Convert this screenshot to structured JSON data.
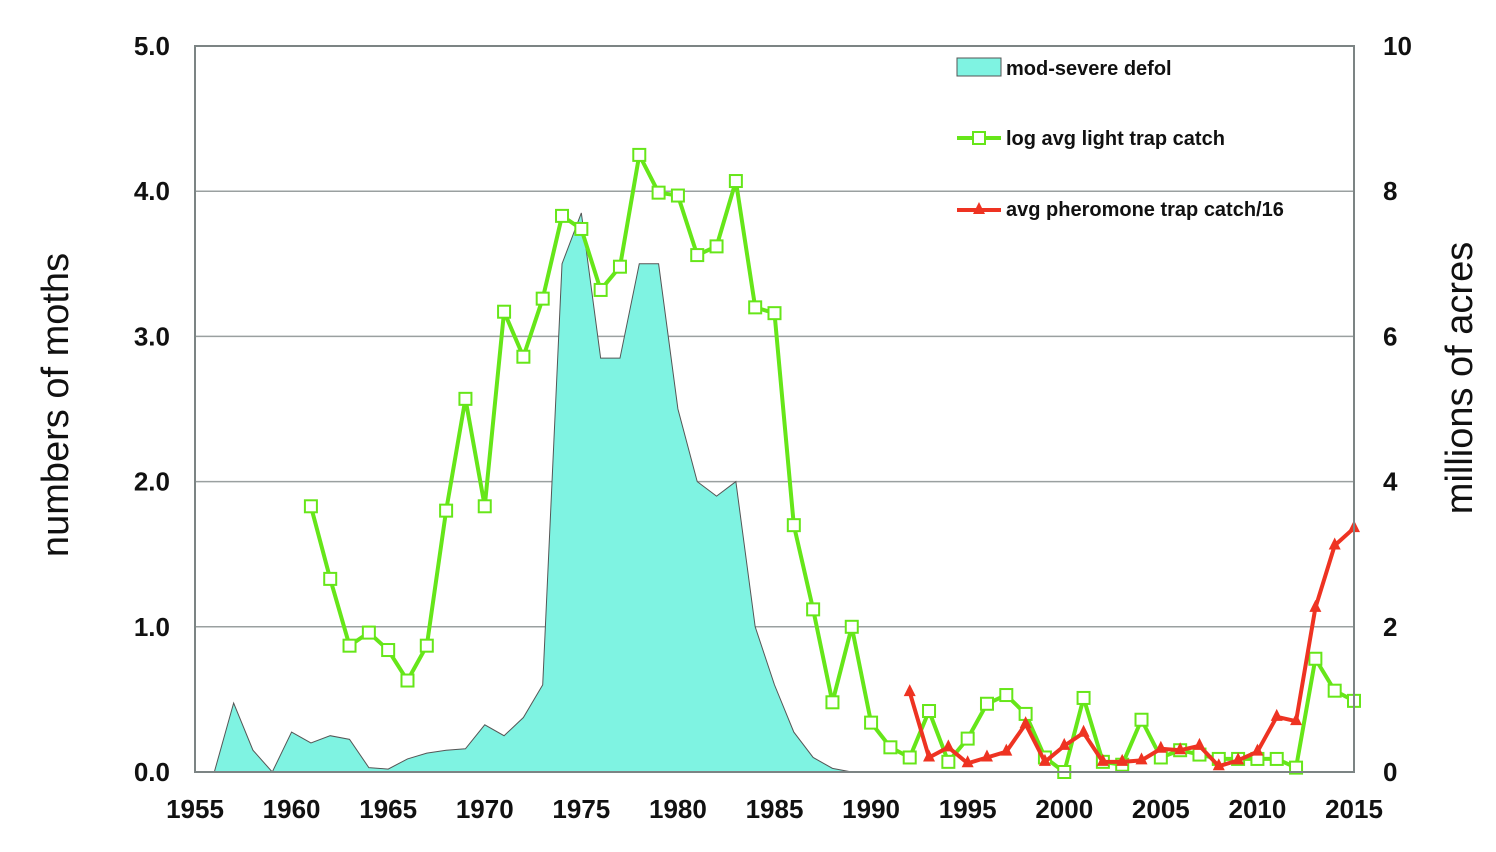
{
  "chart_data": {
    "type": "line",
    "title": "",
    "xlabel": "",
    "ylabel": "numbers of moths",
    "y2label": "millions of acres",
    "xlim": [
      1955,
      2015
    ],
    "ylim": [
      0,
      5
    ],
    "y2lim": [
      0,
      10
    ],
    "x_ticks": [
      "1955",
      "1960",
      "1965",
      "1970",
      "1975",
      "1980",
      "1985",
      "1990",
      "1995",
      "2000",
      "2005",
      "2010",
      "2015"
    ],
    "y_ticks": [
      "0.0",
      "1.0",
      "2.0",
      "3.0",
      "4.0",
      "5.0"
    ],
    "y2_ticks": [
      "0",
      "2",
      "4",
      "6",
      "8",
      "10"
    ],
    "grid": true,
    "legend_position": "top-right",
    "colors": {
      "area_fill": "#7ff3e2",
      "area_edge": "#555555",
      "light_trap": "#66e619",
      "pheromone": "#ee3322",
      "grid": "#9aa0a0",
      "frame": "#7c8484"
    },
    "series": [
      {
        "name": "mod-severe defol",
        "kind": "area",
        "axis": "right",
        "x": [
          1955,
          1956,
          1957,
          1958,
          1959,
          1960,
          1961,
          1962,
          1963,
          1964,
          1965,
          1966,
          1967,
          1968,
          1969,
          1970,
          1971,
          1972,
          1973,
          1974,
          1975,
          1976,
          1977,
          1978,
          1979,
          1980,
          1981,
          1982,
          1983,
          1984,
          1985,
          1986,
          1987,
          1988,
          1989
        ],
        "values": [
          0,
          0,
          0.95,
          0.3,
          0,
          0.55,
          0.4,
          0.5,
          0.45,
          0.06,
          0.04,
          0.18,
          0.26,
          0.3,
          0.32,
          0.65,
          0.5,
          0.75,
          1.2,
          7.0,
          7.7,
          5.7,
          5.7,
          7.0,
          7.0,
          5.0,
          4.0,
          3.8,
          4.0,
          2.0,
          1.2,
          0.55,
          0.2,
          0.05,
          0
        ]
      },
      {
        "name": "log avg light trap catch",
        "kind": "line",
        "marker": "square",
        "axis": "left",
        "x": [
          1961,
          1962,
          1963,
          1964,
          1965,
          1966,
          1967,
          1968,
          1969,
          1970,
          1971,
          1972,
          1973,
          1974,
          1975,
          1976,
          1977,
          1978,
          1979,
          1980,
          1981,
          1982,
          1983,
          1984,
          1985,
          1986,
          1987,
          1988,
          1989,
          1990,
          1991,
          1992,
          1993,
          1994,
          1995,
          1996,
          1997,
          1998,
          1999,
          2000,
          2001,
          2002,
          2003,
          2004,
          2005,
          2006,
          2007,
          2008,
          2009,
          2010,
          2011,
          2012,
          2013,
          2014,
          2015
        ],
        "values": [
          1.83,
          1.33,
          0.87,
          0.96,
          0.84,
          0.63,
          0.87,
          1.8,
          2.57,
          1.83,
          3.17,
          2.86,
          3.26,
          3.83,
          3.74,
          3.32,
          3.48,
          4.25,
          3.99,
          3.97,
          3.56,
          3.62,
          4.07,
          3.2,
          3.16,
          1.7,
          1.12,
          0.48,
          1.0,
          0.34,
          0.17,
          0.1,
          0.42,
          0.07,
          0.23,
          0.47,
          0.53,
          0.4,
          0.1,
          0.0,
          0.51,
          0.07,
          0.05,
          0.36,
          0.1,
          0.15,
          0.12,
          0.09,
          0.09,
          0.09,
          0.09,
          0.03,
          0.78,
          0.56,
          0.49
        ]
      },
      {
        "name": "avg pheromone trap catch/16",
        "kind": "line",
        "marker": "triangle",
        "axis": "left",
        "x": [
          1992,
          1993,
          1994,
          1995,
          1996,
          1997,
          1998,
          1999,
          2000,
          2001,
          2002,
          2003,
          2004,
          2005,
          2006,
          2007,
          2008,
          2009,
          2010,
          2011,
          2012,
          2013,
          2014,
          2015
        ],
        "values": [
          0.55,
          0.1,
          0.17,
          0.06,
          0.1,
          0.14,
          0.33,
          0.07,
          0.18,
          0.27,
          0.07,
          0.07,
          0.08,
          0.16,
          0.15,
          0.18,
          0.04,
          0.08,
          0.14,
          0.38,
          0.35,
          1.13,
          1.56,
          1.68
        ]
      }
    ]
  }
}
